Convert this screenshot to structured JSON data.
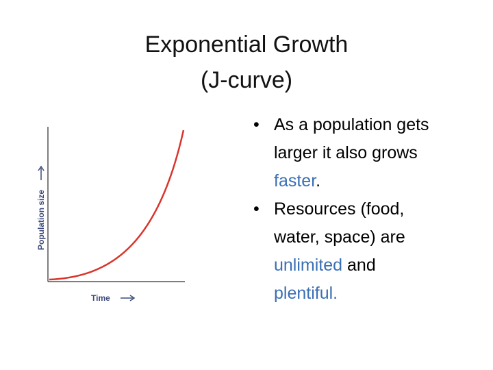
{
  "title": [
    "Exponential Growth",
    "(J-curve)"
  ],
  "figure": {
    "y_label": "Population size",
    "x_label": "Time"
  },
  "bullets": [
    [
      {
        "text": "As a population gets larger it also grows ",
        "color": "#000000"
      },
      {
        "text": "faster",
        "color": "#3a6fb5"
      },
      {
        "text": ".",
        "color": "#000000"
      }
    ],
    [
      {
        "text": "Resources (food, water, space) are ",
        "color": "#000000"
      },
      {
        "text": "unlimited",
        "color": "#3a6fb5"
      },
      {
        "text": " and ",
        "color": "#000000"
      },
      {
        "text": "plentiful.",
        "color": "#3a6fb5"
      }
    ]
  ]
}
